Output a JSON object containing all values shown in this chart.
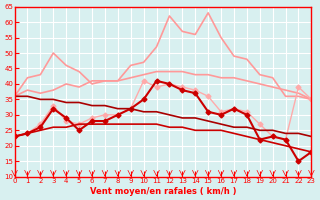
{
  "xlabel": "Vent moyen/en rafales ( km/h )",
  "ylabel": "",
  "xlim": [
    0,
    23
  ],
  "ylim": [
    10,
    65
  ],
  "yticks": [
    10,
    15,
    20,
    25,
    30,
    35,
    40,
    45,
    50,
    55,
    60,
    65
  ],
  "xticks": [
    0,
    1,
    2,
    3,
    4,
    5,
    6,
    7,
    8,
    9,
    10,
    11,
    12,
    13,
    14,
    15,
    16,
    17,
    18,
    19,
    20,
    21,
    22,
    23
  ],
  "bg_color": "#d8f0f0",
  "grid_color": "#ffffff",
  "series": [
    {
      "color": "#ff9999",
      "linewidth": 1.2,
      "marker": null,
      "values": [
        36,
        42,
        43,
        50,
        46,
        44,
        40,
        41,
        41,
        46,
        47,
        52,
        62,
        57,
        56,
        63,
        55,
        49,
        48,
        43,
        42,
        36,
        36,
        35
      ]
    },
    {
      "color": "#ff9999",
      "linewidth": 1.2,
      "marker": null,
      "values": [
        36,
        38,
        37,
        38,
        40,
        39,
        41,
        41,
        41,
        42,
        43,
        44,
        44,
        44,
        43,
        43,
        42,
        42,
        41,
        40,
        39,
        38,
        37,
        35
      ]
    },
    {
      "color": "#ffaaaa",
      "linewidth": 1.0,
      "marker": "D",
      "markersize": 2.5,
      "values": [
        23,
        24,
        27,
        33,
        28,
        27,
        29,
        30,
        30,
        32,
        41,
        39,
        40,
        39,
        38,
        36,
        31,
        32,
        31,
        27,
        23,
        22,
        39,
        35
      ]
    },
    {
      "color": "#cc0000",
      "linewidth": 1.5,
      "marker": "D",
      "markersize": 2.5,
      "values": [
        23,
        24,
        26,
        32,
        29,
        25,
        28,
        28,
        30,
        32,
        35,
        41,
        40,
        38,
        37,
        31,
        30,
        32,
        30,
        22,
        23,
        22,
        15,
        18
      ]
    },
    {
      "color": "#cc0000",
      "linewidth": 1.2,
      "marker": null,
      "values": [
        23,
        24,
        25,
        26,
        26,
        27,
        27,
        27,
        27,
        27,
        27,
        27,
        26,
        26,
        25,
        25,
        25,
        24,
        23,
        22,
        21,
        20,
        19,
        18
      ]
    },
    {
      "color": "#aa0000",
      "linewidth": 1.2,
      "marker": null,
      "values": [
        36,
        36,
        35,
        35,
        34,
        34,
        33,
        33,
        32,
        32,
        31,
        31,
        30,
        29,
        29,
        28,
        27,
        26,
        26,
        25,
        25,
        24,
        24,
        23
      ]
    }
  ]
}
